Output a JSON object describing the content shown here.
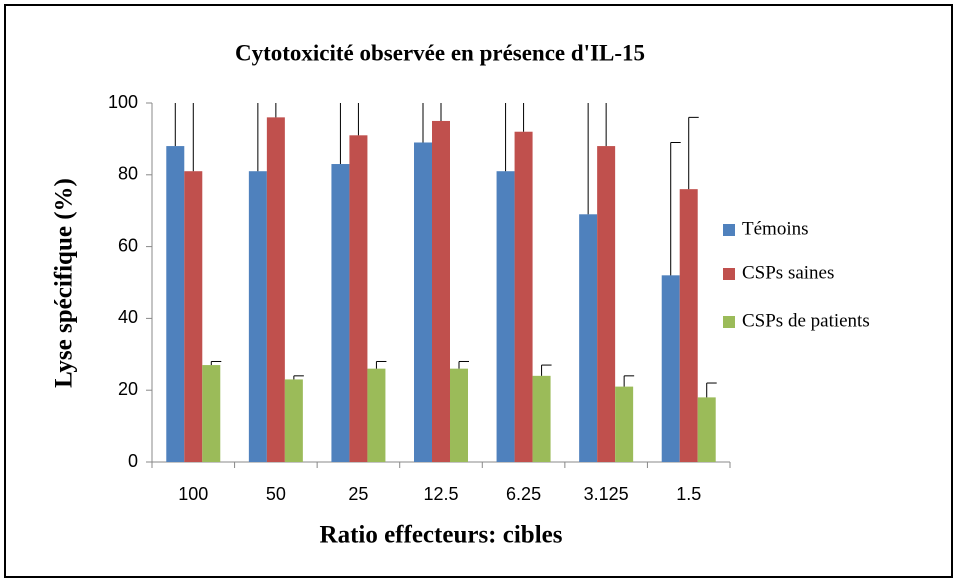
{
  "chart_data": {
    "type": "bar",
    "title": "Cytotoxicité observée en présence d'IL-15",
    "xlabel": "Ratio effecteurs: cibles",
    "ylabel": "Lyse spécifique (%)",
    "categories": [
      "100",
      "50",
      "25",
      "12.5",
      "6.25",
      "3.125",
      "1.5"
    ],
    "series": [
      {
        "name": "Témoins",
        "color": "#4f81bd",
        "values": [
          88,
          81,
          83,
          89,
          81,
          69,
          52
        ],
        "errors": [
          15,
          20,
          20,
          15,
          22,
          35,
          37
        ]
      },
      {
        "name": "CSPs saines",
        "color": "#c0504d",
        "values": [
          81,
          96,
          91,
          95,
          92,
          88,
          76
        ],
        "errors": [
          20,
          5,
          10,
          6,
          10,
          15,
          20
        ]
      },
      {
        "name": "CSPs de patients",
        "color": "#9bbb59",
        "values": [
          27,
          23,
          26,
          26,
          24,
          21,
          18
        ],
        "errors": [
          1,
          1,
          2,
          2,
          3,
          3,
          4
        ]
      }
    ],
    "ylim": [
      0,
      100
    ],
    "yticks": [
      0,
      20,
      40,
      60,
      80,
      100
    ],
    "grid": false,
    "legend": "right"
  }
}
